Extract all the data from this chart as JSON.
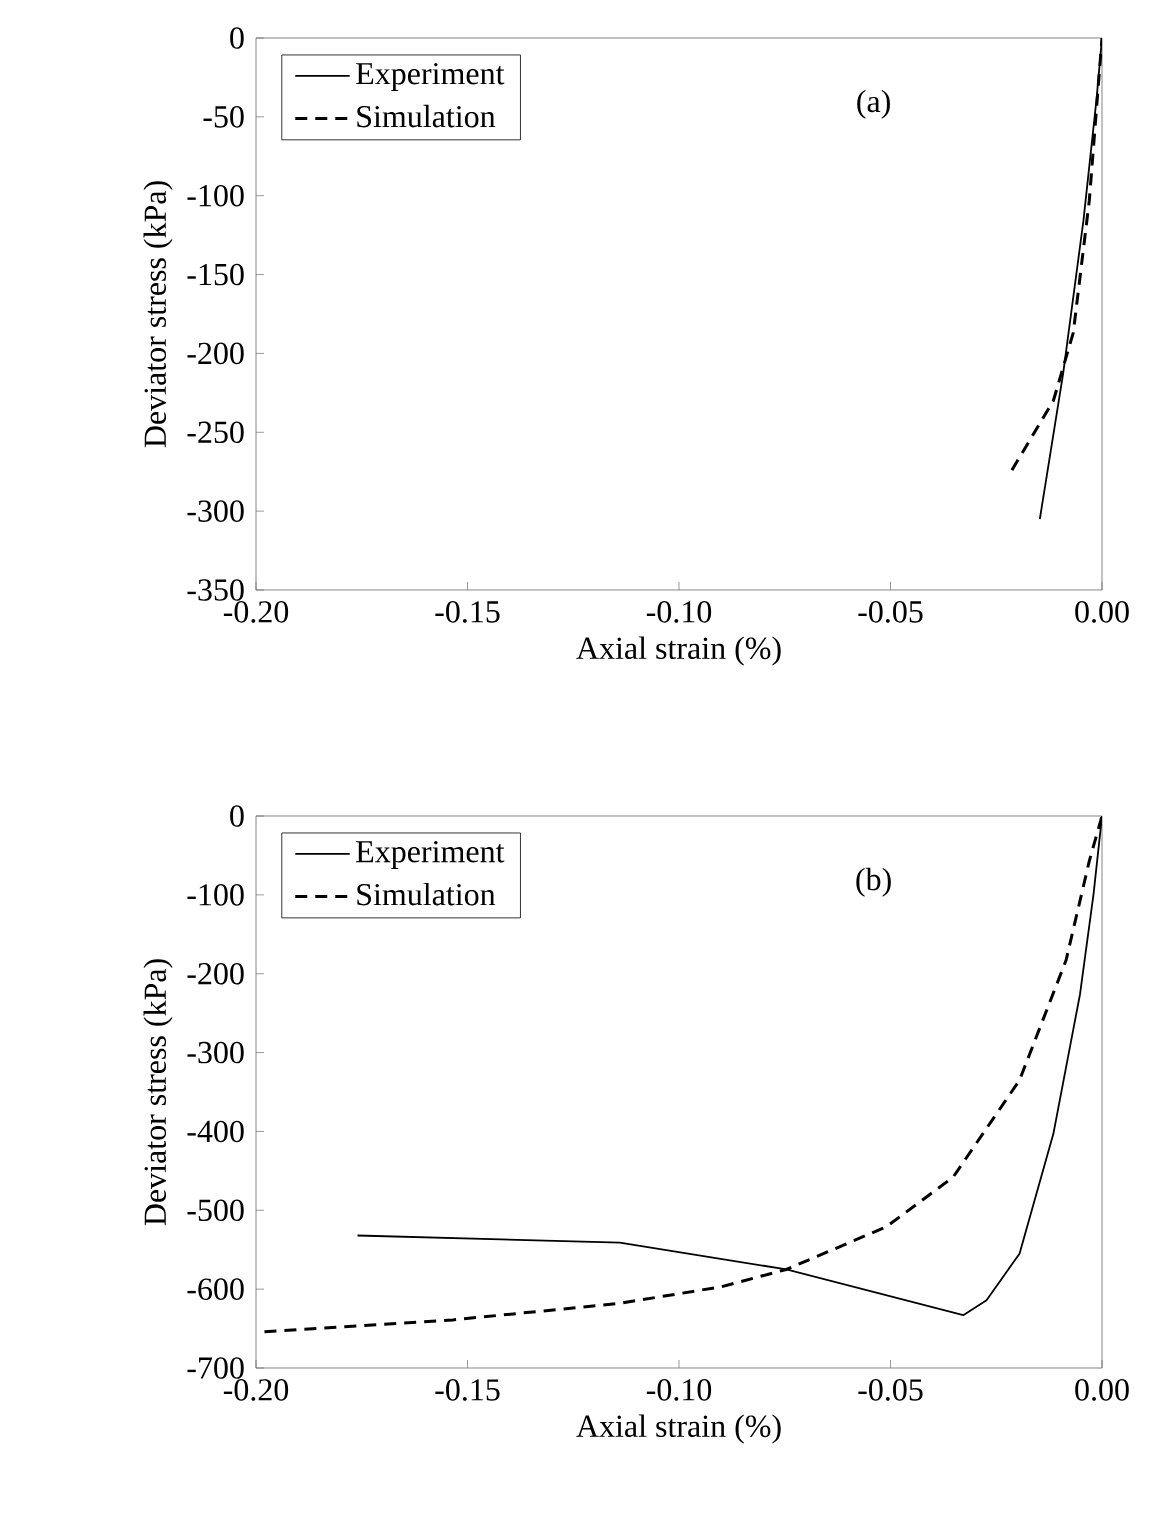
{
  "chart_data": [
    {
      "type": "line",
      "xlabel": "Axial strain (%)",
      "ylabel": "Deviator stress (kPa)",
      "annotations": [
        "(a)"
      ],
      "legend": "top left",
      "xlim": [
        -0.2,
        0
      ],
      "xticks": [
        {
          "value": -0.2,
          "label": "-0.20"
        },
        {
          "value": -0.15,
          "label": "-0.15"
        },
        {
          "value": -0.1,
          "label": "-0.10"
        },
        {
          "value": -0.05,
          "label": "-0.05"
        },
        {
          "value": 0,
          "label": "0.00"
        }
      ],
      "ylim": [
        -350,
        0
      ],
      "yticks": [
        -350,
        -300,
        -250,
        -200,
        -150,
        -100,
        -50,
        0
      ],
      "series": [
        {
          "name": "Experiment",
          "color": "#000000",
          "line_style": "solid",
          "x": [
            -0.0147,
            -0.0092,
            -0.0044,
            -0.0013,
            0
          ],
          "values": [
            -305,
            -213,
            -116,
            -39,
            0
          ]
        },
        {
          "name": "Simulation",
          "color": "#000000",
          "line_style": "dashed",
          "x": [
            -0.0213,
            -0.0115,
            -0.0068,
            -0.003,
            0
          ],
          "values": [
            -274,
            -230,
            -187,
            -103,
            0
          ]
        }
      ]
    },
    {
      "type": "line",
      "xlabel": "Axial strain (%)",
      "ylabel": "Deviator stress (kPa)",
      "annotations": [
        "(b)"
      ],
      "legend": "top left",
      "xlim": [
        -0.2,
        0
      ],
      "xticks": [
        {
          "value": -0.2,
          "label": "-0.20"
        },
        {
          "value": -0.15,
          "label": "-0.15"
        },
        {
          "value": -0.1,
          "label": "-0.10"
        },
        {
          "value": -0.05,
          "label": "-0.05"
        },
        {
          "value": 0,
          "label": "0.00"
        }
      ],
      "ylim": [
        -700,
        0
      ],
      "yticks": [
        -700,
        -600,
        -500,
        -400,
        -300,
        -200,
        -100,
        0
      ],
      "series": [
        {
          "name": "Experiment",
          "color": "#000000",
          "line_style": "solid",
          "x": [
            -0.176,
            -0.114,
            -0.0746,
            -0.0328,
            -0.0273,
            -0.0195,
            -0.0115,
            -0.0052,
            -0.002,
            0
          ],
          "values": [
            -532,
            -541,
            -575,
            -633,
            -614,
            -555,
            -403,
            -226,
            -99,
            0
          ]
        },
        {
          "name": "Simulation",
          "color": "#000000",
          "line_style": "dashed",
          "x": [
            -0.198,
            -0.1535,
            -0.114,
            -0.09,
            -0.0746,
            -0.051,
            -0.0352,
            -0.0195,
            -0.0085,
            -0.003,
            0
          ],
          "values": [
            -654,
            -639,
            -618,
            -597,
            -575,
            -521,
            -458,
            -335,
            -183,
            -57,
            0
          ]
        }
      ]
    }
  ]
}
